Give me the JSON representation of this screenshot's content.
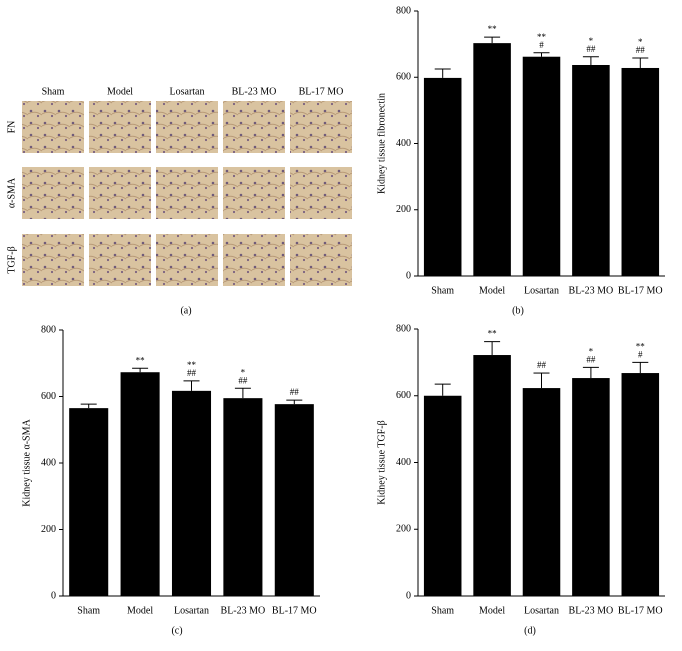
{
  "panel_a": {
    "panel_label": "(a)",
    "columns": [
      "Sham",
      "Model",
      "Losartan",
      "BL-23 MO",
      "BL-17 MO"
    ],
    "rows": [
      "FN",
      "α-SMA",
      "TGF-β"
    ]
  },
  "chart_data": [
    {
      "type": "bar",
      "panel_label": "(b)",
      "y_label": "Kidney tissue fibronectin",
      "categories": [
        "Sham",
        "Model",
        "Losartan",
        "BL-23 MO",
        "BL-17 MO"
      ],
      "values": [
        598,
        703,
        662,
        637,
        628
      ],
      "errors": [
        27,
        18,
        12,
        25,
        30
      ],
      "annotations": [
        null,
        [
          "**"
        ],
        [
          "**",
          "#"
        ],
        [
          "*",
          "##"
        ],
        [
          "*",
          "##"
        ]
      ],
      "color": "#000000",
      "ylim": [
        0,
        800
      ],
      "yticks": [
        0,
        200,
        400,
        600,
        800
      ]
    },
    {
      "type": "bar",
      "panel_label": "(c)",
      "y_label": "Kidney tissue α-SMA",
      "categories": [
        "Sham",
        "Model",
        "Losartan",
        "BL-23 MO",
        "BL-17 MO"
      ],
      "values": [
        565,
        673,
        617,
        595,
        577
      ],
      "errors": [
        12,
        12,
        30,
        30,
        12
      ],
      "annotations": [
        null,
        [
          "**"
        ],
        [
          "**",
          "##"
        ],
        [
          "*",
          "##"
        ],
        [
          "##"
        ]
      ],
      "color": "#000000",
      "ylim": [
        0,
        800
      ],
      "yticks": [
        0,
        200,
        400,
        600,
        800
      ]
    },
    {
      "type": "bar",
      "panel_label": "(d)",
      "y_label": "Kidney tissue TGF-β",
      "categories": [
        "Sham",
        "Model",
        "Losartan",
        "BL-23 MO",
        "BL-17 MO"
      ],
      "values": [
        600,
        722,
        623,
        653,
        668
      ],
      "errors": [
        35,
        40,
        45,
        32,
        32
      ],
      "annotations": [
        null,
        [
          "**"
        ],
        [
          "##"
        ],
        [
          "*",
          "##"
        ],
        [
          "**",
          "#"
        ]
      ],
      "color": "#000000",
      "ylim": [
        0,
        800
      ],
      "yticks": [
        0,
        200,
        400,
        600,
        800
      ]
    }
  ]
}
